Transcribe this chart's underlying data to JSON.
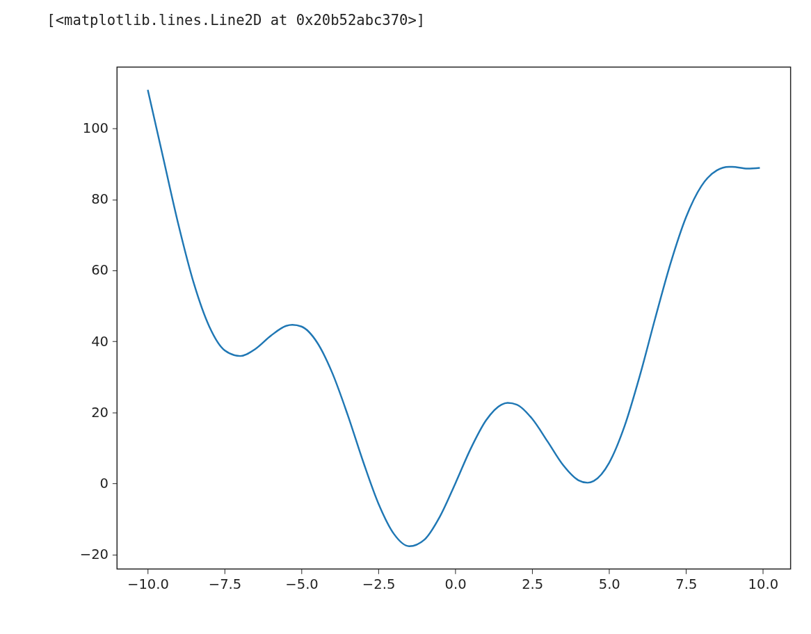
{
  "chart_data": {
    "type": "line",
    "annotations": [
      "[<matplotlib.lines.Line2D at 0x20b52abc370>]"
    ],
    "x": [
      -10,
      -9.5,
      -9,
      -8.5,
      -8,
      -7.5,
      -7,
      -6.5,
      -6,
      -5.5,
      -5.3,
      -5,
      -4.5,
      -4,
      -3.5,
      -3,
      -2.5,
      -2,
      -1.5,
      -1,
      -0.5,
      0,
      0.5,
      1,
      1.5,
      1.7,
      2,
      2.5,
      3,
      3.5,
      4,
      4.3,
      4.5,
      5,
      5.5,
      6,
      6.5,
      7,
      7.5,
      8,
      8.5,
      8.9,
      9,
      9.5,
      9.9
    ],
    "series": [
      {
        "color": "#1f77b4",
        "values": [
          110.9,
          91.8,
          72.8,
          56.3,
          44.2,
          37.5,
          35.9,
          37.9,
          41.6,
          44.4,
          44.7,
          44.2,
          39.8,
          31.1,
          19.3,
          6.2,
          -5.7,
          -14.2,
          -17.7,
          -15.8,
          -9.3,
          0,
          9.8,
          17.8,
          22.2,
          22.7,
          22.2,
          18.2,
          11.8,
          5.2,
          0.9,
          0.2,
          0.7,
          5.8,
          16.1,
          30.4,
          46.6,
          62.1,
          75.0,
          83.8,
          88.2,
          89.2,
          89.2,
          88.7,
          88.9
        ]
      }
    ],
    "xlim": [
      -11.0,
      10.9
    ],
    "ylim": [
      -24.1,
      117.3
    ],
    "xticks": [
      {
        "value": -10,
        "label": "−10.0"
      },
      {
        "value": -7.5,
        "label": "−7.5"
      },
      {
        "value": -5,
        "label": "−5.0"
      },
      {
        "value": -2.5,
        "label": "−2.5"
      },
      {
        "value": 0,
        "label": "0.0"
      },
      {
        "value": 2.5,
        "label": "2.5"
      },
      {
        "value": 5,
        "label": "5.0"
      },
      {
        "value": 7.5,
        "label": "7.5"
      },
      {
        "value": 10,
        "label": "10.0"
      }
    ],
    "yticks": [
      {
        "value": -20,
        "label": "−20"
      },
      0,
      20,
      40,
      60,
      80,
      100
    ],
    "grid": false,
    "line_style": "solid",
    "marker": "none"
  }
}
